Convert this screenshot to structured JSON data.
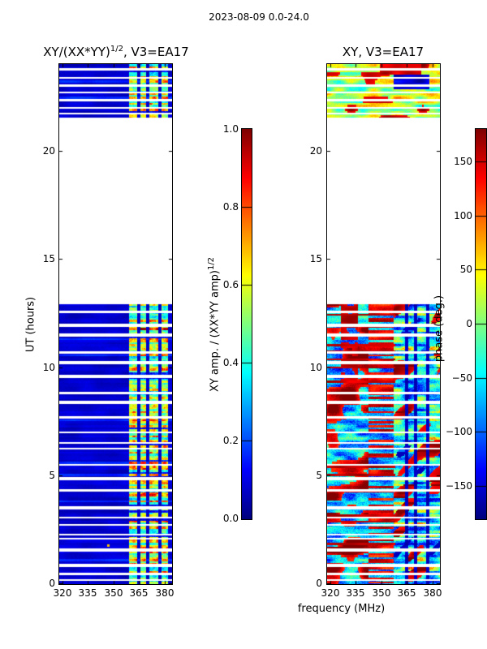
{
  "figure": {
    "title": "2023-08-09 0.0-24.0",
    "xlabel": "frequency (MHz)"
  },
  "chart_data": [
    {
      "type": "heatmap",
      "panel": "left",
      "title": {
        "prefix": "XY/(XX*YY)",
        "sup": "1/2",
        "suffix": ", V3=EA17"
      },
      "ylabel": "UT (hours)",
      "x_range_mhz": [
        318,
        384
      ],
      "y_range_hours": [
        0,
        24
      ],
      "x_tick_values": [
        320,
        335,
        350,
        365,
        380
      ],
      "x_tick_labels": [
        "320",
        "335",
        "350",
        "365",
        "380"
      ],
      "y_tick_values": [
        0,
        5,
        10,
        15,
        20
      ],
      "y_tick_labels": [
        "0",
        "5",
        "10",
        "15",
        "20"
      ],
      "clim": [
        0,
        1
      ],
      "colormap": "jet",
      "time_blocks_hours": [
        [
          0.0,
          12.9
        ],
        [
          21.4,
          24.0
        ]
      ],
      "no_data_gap_hours": [
        12.9,
        21.4
      ],
      "background_coherence": 0.05,
      "bright_band_mhz": [
        359,
        381.5
      ],
      "bright_band_gap_mhz": [
        [
          363.8,
          365.4
        ],
        [
          368.9,
          370.6
        ],
        [
          375.9,
          377.7
        ]
      ],
      "bright_coherence_range": [
        0.3,
        0.75
      ],
      "missing_row_fraction": 0.25,
      "description": "XY coherence amplitude vs frequency and UT; ~0.05 (dark blue) for 318-359 MHz, bright striped band 0.3-0.75 (cyan/green/yellow) at 359-381 MHz; white horizontal rows are missing scans; no data between 12.9 and 21.4 UT"
    },
    {
      "type": "heatmap",
      "panel": "right",
      "title": {
        "prefix": "XY, V3=EA17",
        "sup": "",
        "suffix": ""
      },
      "ylabel": "",
      "x_range_mhz": [
        318,
        384
      ],
      "y_range_hours": [
        0,
        24
      ],
      "x_tick_values": [
        320,
        335,
        350,
        365,
        380
      ],
      "x_tick_labels": [
        "320",
        "335",
        "350",
        "365",
        "380"
      ],
      "y_tick_values": [
        0,
        5,
        10,
        15,
        20
      ],
      "y_tick_labels": [
        "0",
        "5",
        "10",
        "15",
        "20"
      ],
      "clim": [
        -180,
        180
      ],
      "colormap": "jet",
      "time_blocks_hours": [
        [
          0.0,
          12.9
        ],
        [
          21.4,
          24.0
        ]
      ],
      "no_data_gap_hours": [
        12.9,
        21.4
      ],
      "features": {
        "red_phase_band_mhz": [
          344,
          357
        ],
        "red_blob_band_mhz": [
          326,
          336
        ],
        "cyan_band_mhz": [
          357,
          384
        ],
        "stripe_gap_mhz": [
          [
            363.8,
            365.4
          ],
          [
            368.9,
            370.6
          ],
          [
            375.9,
            377.7
          ]
        ],
        "top_block_bias_deg": 20
      },
      "description": "XY phase (degrees) vs frequency and UT; noisy full-range phase: blue/red mottle 318-344 MHz, strong red/orange band 344-357 MHz, cyan-blue with red streaks 357-384 MHz; top block 21.4-24 UT mostly green/cyan with red and dark-blue patches"
    }
  ],
  "colorbars": [
    {
      "label": {
        "prefix": "XY amp. / (XX*YY amp)",
        "sup": "1/2"
      },
      "tick_labels": [
        "1.0",
        "0.8",
        "0.6",
        "0.4",
        "0.2",
        "0.0"
      ],
      "tick_values": [
        1.0,
        0.8,
        0.6,
        0.4,
        0.2,
        0.0
      ],
      "range": [
        0.0,
        1.0
      ],
      "colormap": "jet"
    },
    {
      "label": {
        "prefix": "phase (deg.)",
        "sup": ""
      },
      "tick_labels": [
        "150",
        "100",
        "50",
        "0",
        "−50",
        "−100",
        "−150"
      ],
      "tick_values": [
        150,
        100,
        50,
        0,
        -50,
        -100,
        -150
      ],
      "range": [
        -180,
        180
      ],
      "colormap": "jet"
    }
  ]
}
